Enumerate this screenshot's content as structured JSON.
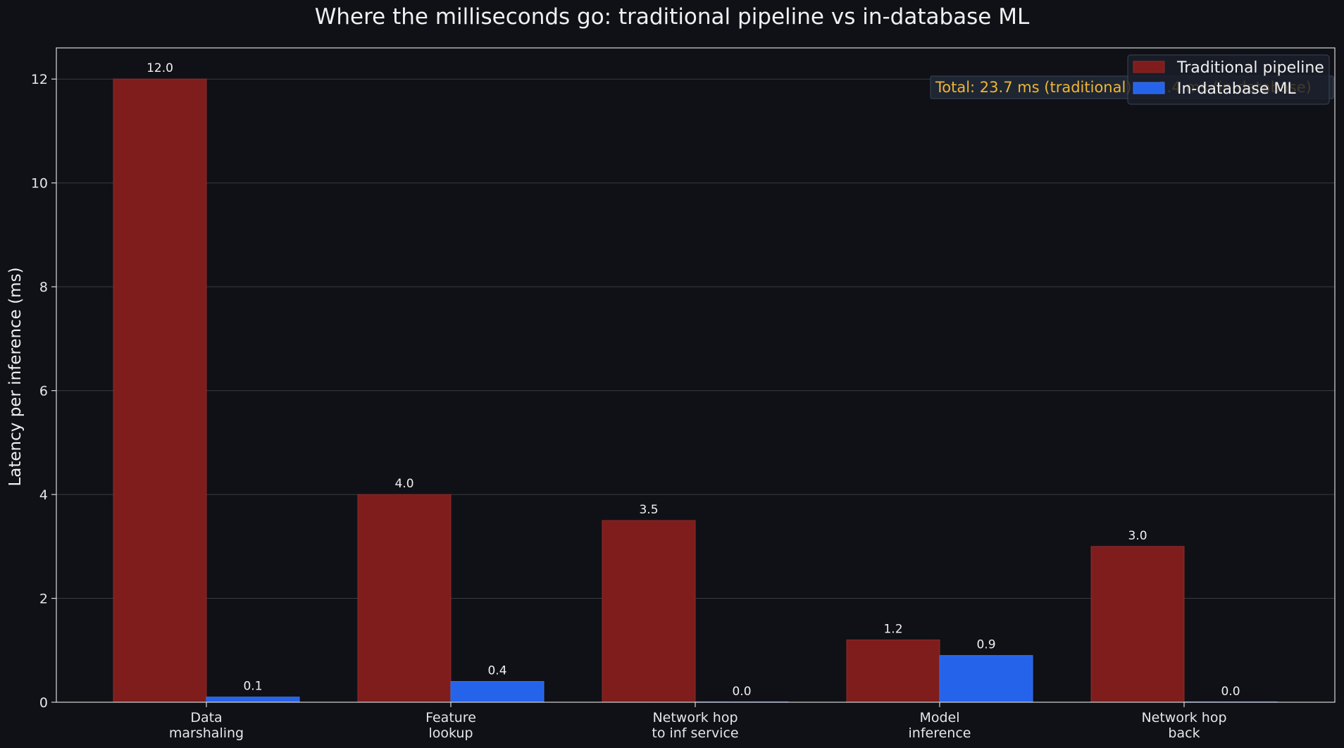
{
  "chart_data": {
    "type": "bar",
    "title": "Where the milliseconds go: traditional pipeline vs in-database ML",
    "xlabel": "",
    "ylabel": "Latency per inference (ms)",
    "ylim": [
      0,
      12.6
    ],
    "yticks": [
      0,
      2,
      4,
      6,
      8,
      10,
      12
    ],
    "grid": true,
    "legend_position": "top-right",
    "categories": [
      [
        "Data",
        "marshaling"
      ],
      [
        "Feature",
        "lookup"
      ],
      [
        "Network hop",
        "to inf service"
      ],
      [
        "Model",
        "inference"
      ],
      [
        "Network hop",
        "back"
      ]
    ],
    "series": [
      {
        "name": "Traditional pipeline",
        "color": "#7f1d1d",
        "values": [
          12.0,
          4.0,
          3.5,
          1.2,
          3.0
        ]
      },
      {
        "name": "In-database ML",
        "color": "#2563eb",
        "values": [
          0.1,
          0.4,
          0.0,
          0.9,
          0.0
        ]
      }
    ],
    "annotation": "Total: 23.7 ms (traditional) vs 1.4 ms (in-database)",
    "colors": {
      "background": "#101117",
      "grid": "#3a3b42",
      "annotation_text": "#f2b630",
      "annotation_box": "#1e2633"
    }
  }
}
